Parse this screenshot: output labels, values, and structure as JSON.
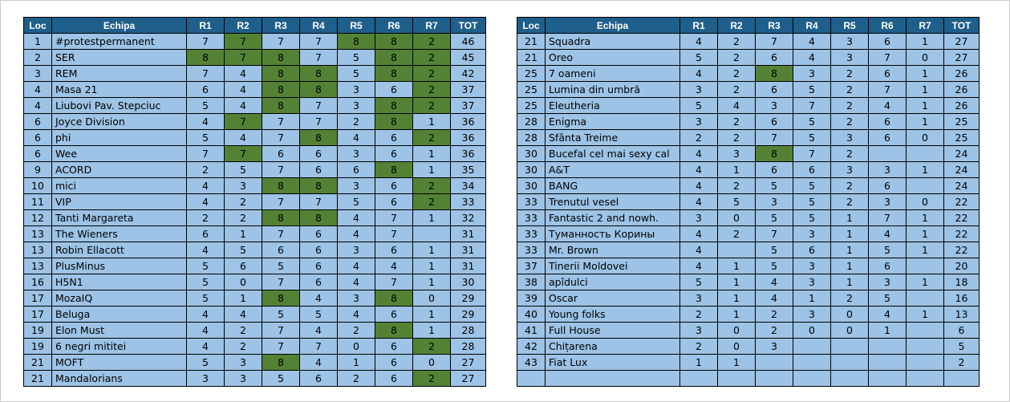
{
  "headers": [
    "Loc",
    "Echipa",
    "R1",
    "R2",
    "R3",
    "R4",
    "R5",
    "R6",
    "R7",
    "TOT"
  ],
  "colors": {
    "header_bg": "#1f5f8b",
    "cell_bg": "#9dc3e6",
    "highlight_bg": "#548235"
  },
  "tables": [
    {
      "rows": [
        {
          "cells": [
            "1",
            "#protestpermanent",
            "7",
            "7",
            "7",
            "7",
            "8",
            "8",
            "2",
            "46"
          ],
          "hl": [
            3,
            6,
            7,
            8
          ]
        },
        {
          "cells": [
            "2",
            "SER",
            "8",
            "7",
            "8",
            "7",
            "5",
            "8",
            "2",
            "45"
          ],
          "hl": [
            2,
            3,
            4,
            7,
            8
          ]
        },
        {
          "cells": [
            "3",
            "REM",
            "7",
            "4",
            "8",
            "8",
            "5",
            "8",
            "2",
            "42"
          ],
          "hl": [
            4,
            5,
            7,
            8
          ]
        },
        {
          "cells": [
            "4",
            "Masa 21",
            "6",
            "4",
            "8",
            "8",
            "3",
            "6",
            "2",
            "37"
          ],
          "hl": [
            4,
            5,
            8
          ]
        },
        {
          "cells": [
            "4",
            "Liubovi Pav. Stepciuc",
            "5",
            "4",
            "8",
            "7",
            "3",
            "8",
            "2",
            "37"
          ],
          "hl": [
            4,
            7,
            8
          ]
        },
        {
          "cells": [
            "6",
            "Joyce Division",
            "4",
            "7",
            "7",
            "7",
            "2",
            "8",
            "1",
            "36"
          ],
          "hl": [
            3,
            7
          ]
        },
        {
          "cells": [
            "6",
            "phi",
            "5",
            "4",
            "7",
            "8",
            "4",
            "6",
            "2",
            "36"
          ],
          "hl": [
            5,
            8
          ]
        },
        {
          "cells": [
            "6",
            "Wee",
            "7",
            "7",
            "6",
            "6",
            "3",
            "6",
            "1",
            "36"
          ],
          "hl": [
            3
          ]
        },
        {
          "cells": [
            "9",
            "ACORD",
            "2",
            "5",
            "7",
            "6",
            "6",
            "8",
            "1",
            "35"
          ],
          "hl": [
            7
          ]
        },
        {
          "cells": [
            "10",
            "mici",
            "4",
            "3",
            "8",
            "8",
            "3",
            "6",
            "2",
            "34"
          ],
          "hl": [
            4,
            5,
            8
          ]
        },
        {
          "cells": [
            "11",
            "VIP",
            "4",
            "2",
            "7",
            "7",
            "5",
            "6",
            "2",
            "33"
          ],
          "hl": [
            8
          ]
        },
        {
          "cells": [
            "12",
            "Tanti Margareta",
            "2",
            "2",
            "8",
            "8",
            "4",
            "7",
            "1",
            "32"
          ],
          "hl": [
            4,
            5
          ]
        },
        {
          "cells": [
            "13",
            "The Wieners",
            "6",
            "1",
            "7",
            "6",
            "4",
            "7",
            "",
            "31"
          ],
          "hl": []
        },
        {
          "cells": [
            "13",
            "Robin Ellacott",
            "4",
            "5",
            "6",
            "6",
            "3",
            "6",
            "1",
            "31"
          ],
          "hl": []
        },
        {
          "cells": [
            "13",
            "PlusMinus",
            "5",
            "6",
            "5",
            "6",
            "4",
            "4",
            "1",
            "31"
          ],
          "hl": []
        },
        {
          "cells": [
            "16",
            "H5N1",
            "5",
            "0",
            "7",
            "6",
            "4",
            "7",
            "1",
            "30"
          ],
          "hl": []
        },
        {
          "cells": [
            "17",
            "MozaIQ",
            "5",
            "1",
            "8",
            "4",
            "3",
            "8",
            "0",
            "29"
          ],
          "hl": [
            4,
            7
          ]
        },
        {
          "cells": [
            "17",
            "Beluga",
            "4",
            "4",
            "5",
            "5",
            "4",
            "6",
            "1",
            "29"
          ],
          "hl": []
        },
        {
          "cells": [
            "19",
            "Elon Must",
            "4",
            "2",
            "7",
            "4",
            "2",
            "8",
            "1",
            "28"
          ],
          "hl": [
            7
          ]
        },
        {
          "cells": [
            "19",
            "6 negri mititei",
            "4",
            "2",
            "7",
            "7",
            "0",
            "6",
            "2",
            "28"
          ],
          "hl": [
            8
          ]
        },
        {
          "cells": [
            "21",
            "MOFT",
            "5",
            "3",
            "8",
            "4",
            "1",
            "6",
            "0",
            "27"
          ],
          "hl": [
            4
          ]
        },
        {
          "cells": [
            "21",
            "Mandalorians",
            "3",
            "3",
            "5",
            "6",
            "2",
            "6",
            "2",
            "27"
          ],
          "hl": [
            8
          ]
        }
      ]
    },
    {
      "rows": [
        {
          "cells": [
            "21",
            "Squadra",
            "4",
            "2",
            "7",
            "4",
            "3",
            "6",
            "1",
            "27"
          ],
          "hl": []
        },
        {
          "cells": [
            "21",
            "Oreo",
            "5",
            "2",
            "6",
            "4",
            "3",
            "7",
            "0",
            "27"
          ],
          "hl": []
        },
        {
          "cells": [
            "25",
            "7 oameni",
            "4",
            "2",
            "8",
            "3",
            "2",
            "6",
            "1",
            "26"
          ],
          "hl": [
            4
          ]
        },
        {
          "cells": [
            "25",
            "Lumina din umbră",
            "3",
            "2",
            "6",
            "5",
            "2",
            "7",
            "1",
            "26"
          ],
          "hl": []
        },
        {
          "cells": [
            "25",
            "Eleutheria",
            "5",
            "4",
            "3",
            "7",
            "2",
            "4",
            "1",
            "26"
          ],
          "hl": []
        },
        {
          "cells": [
            "28",
            "Enigma",
            "3",
            "2",
            "6",
            "5",
            "2",
            "6",
            "1",
            "25"
          ],
          "hl": []
        },
        {
          "cells": [
            "28",
            "Sfânta Treime",
            "2",
            "2",
            "7",
            "5",
            "3",
            "6",
            "0",
            "25"
          ],
          "hl": []
        },
        {
          "cells": [
            "30",
            "Bucefal cel mai sexy cal",
            "4",
            "3",
            "8",
            "7",
            "2",
            "",
            "",
            "24"
          ],
          "hl": [
            4
          ]
        },
        {
          "cells": [
            "30",
            "A&T",
            "4",
            "1",
            "6",
            "6",
            "3",
            "3",
            "1",
            "24"
          ],
          "hl": []
        },
        {
          "cells": [
            "30",
            "BANG",
            "4",
            "2",
            "5",
            "5",
            "2",
            "6",
            "",
            "24"
          ],
          "hl": []
        },
        {
          "cells": [
            "33",
            "Trenutul vesel",
            "4",
            "5",
            "3",
            "5",
            "2",
            "3",
            "0",
            "22"
          ],
          "hl": []
        },
        {
          "cells": [
            "33",
            "Fantastic 2 and nowh.",
            "3",
            "0",
            "5",
            "5",
            "1",
            "7",
            "1",
            "22"
          ],
          "hl": []
        },
        {
          "cells": [
            "33",
            "Туманность Корины",
            "4",
            "2",
            "7",
            "3",
            "1",
            "4",
            "1",
            "22"
          ],
          "hl": []
        },
        {
          "cells": [
            "33",
            "Mr. Brown",
            "4",
            "",
            "5",
            "6",
            "1",
            "5",
            "1",
            "22"
          ],
          "hl": []
        },
        {
          "cells": [
            "37",
            "Tinerii Moldovei",
            "4",
            "1",
            "5",
            "3",
            "1",
            "6",
            "",
            "20"
          ],
          "hl": []
        },
        {
          "cells": [
            "38",
            "apîdulci",
            "5",
            "1",
            "4",
            "3",
            "1",
            "3",
            "1",
            "18"
          ],
          "hl": []
        },
        {
          "cells": [
            "39",
            "Oscar",
            "3",
            "1",
            "4",
            "1",
            "2",
            "5",
            "",
            "16"
          ],
          "hl": []
        },
        {
          "cells": [
            "40",
            "Young folks",
            "2",
            "1",
            "2",
            "3",
            "0",
            "4",
            "1",
            "13"
          ],
          "hl": []
        },
        {
          "cells": [
            "41",
            "Full House",
            "3",
            "0",
            "2",
            "0",
            "0",
            "1",
            "",
            "6"
          ],
          "hl": []
        },
        {
          "cells": [
            "42",
            "Chițarena",
            "2",
            "0",
            "3",
            "",
            "",
            "",
            "",
            "5"
          ],
          "hl": []
        },
        {
          "cells": [
            "43",
            "Fiat Lux",
            "1",
            "1",
            "",
            "",
            "",
            "",
            "",
            "2"
          ],
          "hl": []
        },
        {
          "cells": [
            "",
            "",
            "",
            "",
            "",
            "",
            "",
            "",
            "",
            ""
          ],
          "hl": []
        }
      ]
    }
  ]
}
